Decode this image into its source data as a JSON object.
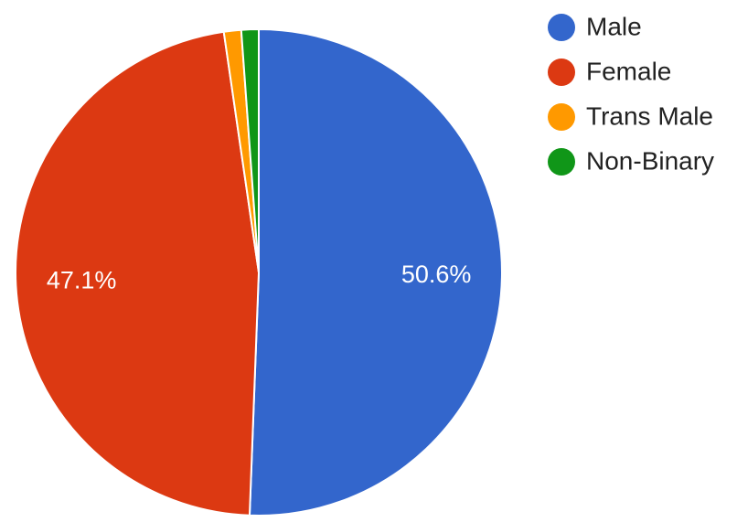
{
  "chart_data": {
    "type": "pie",
    "categories": [
      "Male",
      "Female",
      "Trans Male",
      "Non-Binary"
    ],
    "values": [
      50.6,
      47.1,
      1.15,
      1.15
    ],
    "value_labels": [
      "50.6%",
      "47.1%",
      null,
      null
    ],
    "colors": [
      "#3366cc",
      "#dc3912",
      "#ff9900",
      "#109618"
    ],
    "legend": "right"
  }
}
